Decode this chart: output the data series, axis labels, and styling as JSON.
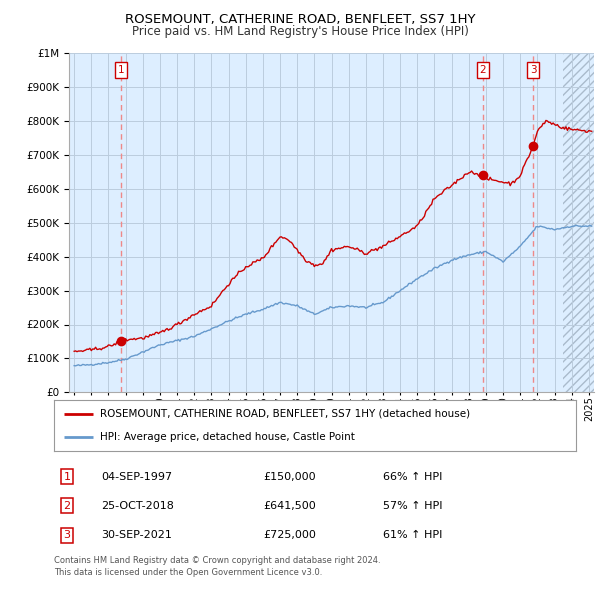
{
  "title": "ROSEMOUNT, CATHERINE ROAD, BENFLEET, SS7 1HY",
  "subtitle": "Price paid vs. HM Land Registry's House Price Index (HPI)",
  "red_label": "ROSEMOUNT, CATHERINE ROAD, BENFLEET, SS7 1HY (detached house)",
  "blue_label": "HPI: Average price, detached house, Castle Point",
  "transactions": [
    {
      "num": 1,
      "date": "04-SEP-1997",
      "price": 150000,
      "hpi_pct": "66% ↑ HPI",
      "x_year": 1997.75
    },
    {
      "num": 2,
      "date": "25-OCT-2018",
      "price": 641500,
      "hpi_pct": "57% ↑ HPI",
      "x_year": 2018.82
    },
    {
      "num": 3,
      "date": "30-SEP-2021",
      "price": 725000,
      "hpi_pct": "61% ↑ HPI",
      "x_year": 2021.75
    }
  ],
  "footnote1": "Contains HM Land Registry data © Crown copyright and database right 2024.",
  "footnote2": "This data is licensed under the Open Government Licence v3.0.",
  "ylim": [
    0,
    1000000
  ],
  "xlim_start": 1994.7,
  "xlim_end": 2025.3,
  "hatch_start": 2023.5,
  "background_color": "#ffffff",
  "plot_bg_color": "#ddeeff",
  "red_color": "#cc0000",
  "blue_color": "#6699cc",
  "vline_color": "#ee8888",
  "grid_color": "#bbccdd",
  "hatch_color": "#c8d8e8"
}
